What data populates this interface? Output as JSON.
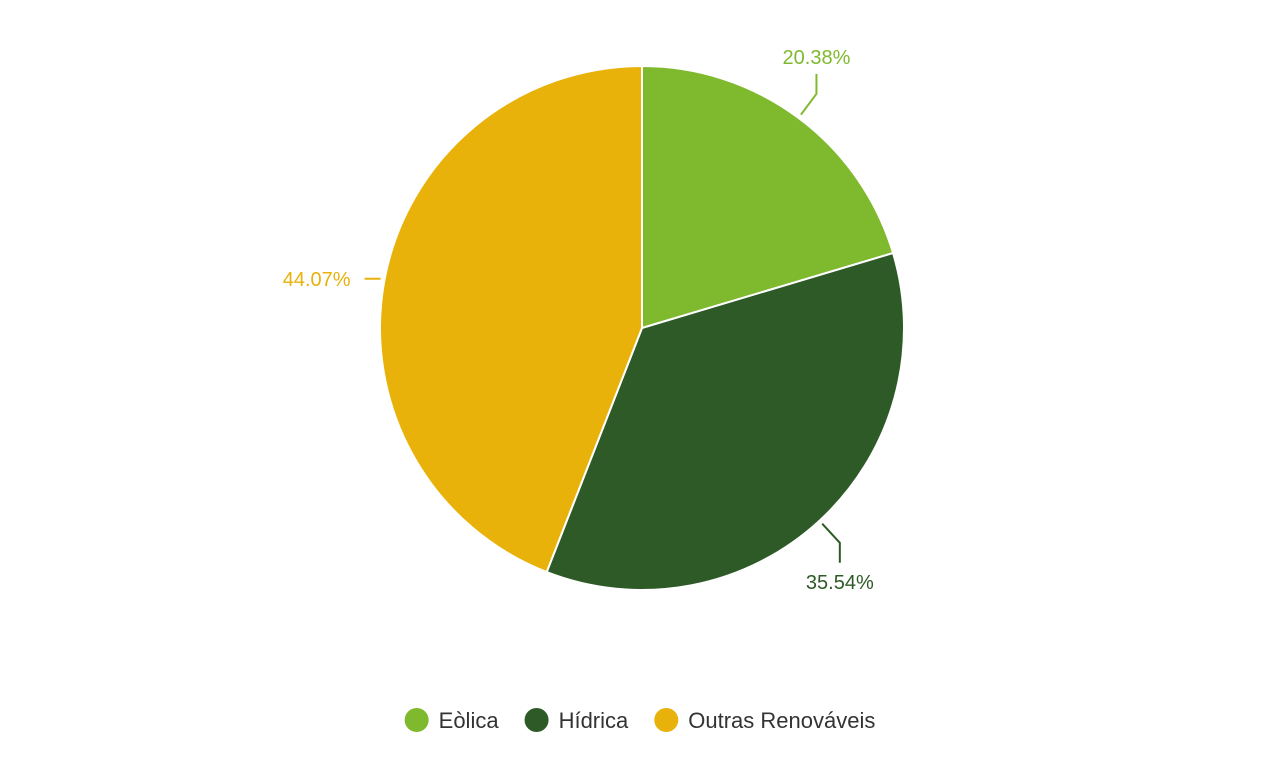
{
  "chart_data": {
    "type": "pie",
    "series": [
      {
        "name": "Eòlica",
        "value": 20.38,
        "label": "20.38%",
        "color": "#7FB92E"
      },
      {
        "name": "Hídrica",
        "value": 35.54,
        "label": "35.54%",
        "color": "#2E5A27"
      },
      {
        "name": "Outras Renováveis",
        "value": 44.07,
        "label": "44.07%",
        "color": "#E8B20A"
      }
    ],
    "start_angle_deg": 0,
    "direction": "clockwise",
    "legend_position": "bottom-center"
  }
}
